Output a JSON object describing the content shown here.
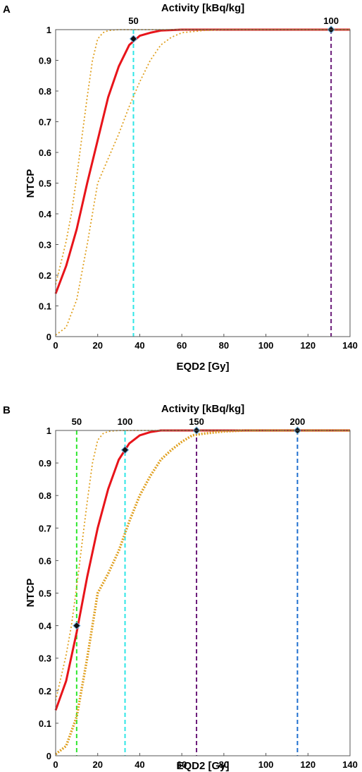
{
  "chart_data": [
    {
      "type": "line",
      "panel": "A",
      "xlabel": "EQD2 [Gy]",
      "ylabel": "NTCP",
      "top_axis_label": "Activity [kBq/kg]",
      "xlim": [
        0,
        140
      ],
      "ylim": [
        0,
        1
      ],
      "xticks": [
        0,
        20,
        40,
        60,
        80,
        100,
        120,
        140
      ],
      "yticks": [
        0,
        0.1,
        0.2,
        0.3,
        0.4,
        0.5,
        0.6,
        0.7,
        0.8,
        0.9,
        1
      ],
      "series": [
        {
          "color": "#e8141a",
          "style": "solid",
          "x": [
            0,
            5,
            10,
            15,
            20,
            25,
            30,
            35,
            40,
            45,
            50,
            60,
            70,
            80,
            100,
            120,
            140
          ],
          "y": [
            0.14,
            0.23,
            0.35,
            0.5,
            0.64,
            0.78,
            0.88,
            0.95,
            0.98,
            0.99,
            0.997,
            1,
            1,
            1,
            1,
            1,
            1
          ]
        },
        {
          "color": "#e0a020",
          "style": "dotted",
          "x": [
            0,
            2.5,
            5,
            7.5,
            10,
            12.5,
            15,
            17.5,
            20,
            22.5,
            25,
            30,
            35,
            40,
            140
          ],
          "y": [
            0.17,
            0.24,
            0.31,
            0.4,
            0.52,
            0.65,
            0.78,
            0.9,
            0.97,
            0.99,
            0.997,
            1,
            1,
            1,
            1
          ]
        },
        {
          "color": "#e0a020",
          "style": "dotted",
          "x": [
            0,
            5,
            10,
            15,
            20,
            25,
            30,
            35,
            40,
            45,
            50,
            55,
            60,
            70,
            80,
            140
          ],
          "y": [
            0.005,
            0.03,
            0.12,
            0.3,
            0.5,
            0.58,
            0.66,
            0.75,
            0.83,
            0.9,
            0.95,
            0.975,
            0.99,
            0.997,
            1,
            1
          ]
        }
      ],
      "markers": [
        {
          "x": 37,
          "y": 0.97,
          "activity": "50",
          "line_color": "#2ee6e6"
        },
        {
          "x": 131,
          "y": 1.0,
          "activity": "100",
          "line_color": "#6a1a78"
        }
      ]
    },
    {
      "type": "line",
      "panel": "B",
      "xlabel": "EQD2 [Gy]",
      "ylabel": "NTCP",
      "top_axis_label": "Activity [kBq/kg]",
      "xlim": [
        0,
        140
      ],
      "ylim": [
        0,
        1
      ],
      "xticks": [
        0,
        20,
        40,
        60,
        80,
        100,
        120,
        140
      ],
      "yticks": [
        0,
        0.1,
        0.2,
        0.3,
        0.4,
        0.5,
        0.6,
        0.7,
        0.8,
        0.9,
        1
      ],
      "series": [
        {
          "color": "#e8141a",
          "style": "solid",
          "x": [
            0,
            5,
            10,
            15,
            20,
            25,
            30,
            35,
            40,
            45,
            50,
            60,
            70,
            80,
            100,
            120,
            140
          ],
          "y": [
            0.14,
            0.23,
            0.38,
            0.55,
            0.7,
            0.82,
            0.91,
            0.96,
            0.985,
            0.995,
            1,
            1,
            1,
            1,
            1,
            1,
            1
          ]
        },
        {
          "color": "#e0a020",
          "style": "dotted",
          "x": [
            0,
            2.5,
            5,
            7.5,
            10,
            12.5,
            15,
            17.5,
            20,
            22.5,
            25,
            30,
            35,
            40,
            140
          ],
          "y": [
            0.17,
            0.24,
            0.31,
            0.4,
            0.52,
            0.65,
            0.78,
            0.9,
            0.97,
            0.99,
            0.997,
            1,
            1,
            1,
            1
          ]
        },
        {
          "color": "#e0a020",
          "style": "dotted-thick",
          "x": [
            0,
            5,
            10,
            15,
            20,
            25,
            30,
            35,
            40,
            45,
            50,
            55,
            60,
            65,
            70,
            80,
            90,
            100,
            140
          ],
          "y": [
            0.005,
            0.03,
            0.12,
            0.3,
            0.5,
            0.56,
            0.63,
            0.72,
            0.8,
            0.86,
            0.91,
            0.94,
            0.965,
            0.985,
            0.99,
            0.997,
            1,
            1,
            1
          ]
        }
      ],
      "markers": [
        {
          "x": 10,
          "y": 0.4,
          "activity": "50",
          "line_color": "#2ee62e"
        },
        {
          "x": 33,
          "y": 0.94,
          "activity": "100",
          "line_color": "#2ee6e6"
        },
        {
          "x": 67,
          "y": 1.0,
          "activity": "150",
          "line_color": "#6a1a78"
        },
        {
          "x": 115,
          "y": 1.0,
          "activity": "200",
          "line_color": "#1f6fcf"
        }
      ]
    }
  ]
}
